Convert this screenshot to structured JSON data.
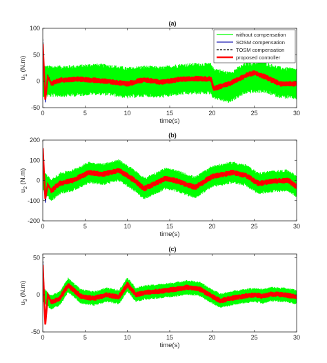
{
  "chart_data": [
    {
      "type": "line",
      "title": "(a)",
      "xlabel": "time(s)",
      "ylabel": "u1 (N.m)",
      "ylabel_main": "u",
      "ylabel_sub": "1",
      "ylabel_rest": " (N.m)",
      "xlim": [
        0,
        30
      ],
      "ylim": [
        -50,
        100
      ],
      "xticks": [
        "0",
        "5",
        "10",
        "15",
        "20",
        "25",
        "30"
      ],
      "yticks": [
        "-50",
        "0",
        "50",
        "100"
      ],
      "xtick_values": [
        0,
        5,
        10,
        15,
        20,
        25,
        30
      ],
      "ytick_values": [
        -50,
        0,
        50,
        100
      ],
      "grid": false,
      "legend_position": "top-right",
      "series": [
        {
          "name": "without compensation",
          "color": "#00ff00",
          "style": "solid",
          "x": [
            0,
            2,
            4,
            6,
            8,
            10,
            12,
            14,
            16,
            18,
            19.9,
            20.1,
            22,
            24,
            26,
            28,
            30
          ],
          "y": [
            0,
            0,
            1,
            4,
            2,
            -3,
            0,
            -2,
            3,
            5,
            5,
            -3,
            -12,
            6,
            8,
            -2,
            -5
          ],
          "band_halfwidth": 30
        },
        {
          "name": "SOSM compensation",
          "color": "#1f1fb4",
          "style": "solid",
          "x": [
            0,
            0.3,
            0.6,
            1,
            2,
            4,
            6,
            8,
            10,
            12,
            14,
            16,
            18,
            19.9,
            20.2,
            22,
            24,
            25,
            26,
            28,
            30
          ],
          "y": [
            75,
            -40,
            10,
            -5,
            2,
            5,
            2,
            -1,
            -6,
            4,
            -2,
            3,
            5,
            4,
            -15,
            -5,
            12,
            17,
            10,
            -5,
            -5
          ]
        },
        {
          "name": "TOSM compensation",
          "color": "#000000",
          "style": "dashed",
          "x": [
            0,
            0.3,
            0.6,
            1,
            2,
            4,
            6,
            8,
            10,
            12,
            14,
            16,
            18,
            19.9,
            20.2,
            22,
            24,
            25,
            26,
            28,
            30
          ],
          "y": [
            80,
            -30,
            12,
            -4,
            2,
            4,
            2,
            -1,
            -5,
            3,
            -2,
            3,
            5,
            4,
            -14,
            -5,
            11,
            16,
            10,
            -5,
            -5
          ]
        },
        {
          "name": "proposed controller",
          "color": "#ff0000",
          "style": "solid",
          "x": [
            0,
            0.3,
            0.6,
            1,
            2,
            4,
            6,
            8,
            10,
            12,
            14,
            16,
            18,
            19.9,
            20.2,
            22,
            24,
            25,
            26,
            28,
            30
          ],
          "y": [
            70,
            -35,
            8,
            -4,
            2,
            4,
            2,
            -1,
            -5,
            3,
            -2,
            3,
            5,
            4,
            -14,
            -5,
            11,
            16,
            10,
            -5,
            -5
          ]
        }
      ]
    },
    {
      "type": "line",
      "title": "(b)",
      "xlabel": "time(s)",
      "ylabel": "u2 (N.m)",
      "ylabel_main": "u",
      "ylabel_sub": "2",
      "ylabel_rest": " (N.m)",
      "xlim": [
        0,
        30
      ],
      "ylim": [
        -200,
        200
      ],
      "xticks": [
        "0",
        "5",
        "10",
        "15",
        "20",
        "25",
        "30"
      ],
      "yticks": [
        "-200",
        "-100",
        "0",
        "100",
        "200"
      ],
      "xtick_values": [
        0,
        5,
        10,
        15,
        20,
        25,
        30
      ],
      "ytick_values": [
        -200,
        -100,
        0,
        100,
        200
      ],
      "grid": false,
      "series": [
        {
          "name": "without compensation",
          "color": "#00ff00",
          "style": "solid",
          "x": [
            0,
            1,
            2,
            3.5,
            5.5,
            7,
            9,
            10.5,
            12,
            14.5,
            16,
            18,
            20,
            22.5,
            24,
            25.5,
            27,
            29,
            30
          ],
          "y": [
            0,
            -50,
            -15,
            0,
            40,
            30,
            50,
            10,
            -40,
            10,
            -5,
            -35,
            20,
            40,
            25,
            -15,
            -5,
            0,
            -30
          ],
          "band_halfwidth": 55
        },
        {
          "name": "SOSM compensation",
          "color": "#1f1fb4",
          "style": "solid",
          "x": [
            0,
            0.3,
            0.6,
            1,
            2,
            3.5,
            5.5,
            7,
            9,
            10.5,
            12,
            14.5,
            16,
            18,
            20,
            22.5,
            24,
            25.5,
            27,
            29,
            30
          ],
          "y": [
            130,
            -110,
            -20,
            -50,
            -15,
            0,
            40,
            30,
            50,
            10,
            -40,
            10,
            -5,
            -35,
            20,
            40,
            25,
            -15,
            -5,
            0,
            -30
          ]
        },
        {
          "name": "TOSM compensation",
          "color": "#000000",
          "style": "dashed",
          "x": [
            0,
            0.3,
            0.6,
            1,
            2,
            3.5,
            5.5,
            7,
            9,
            10.5,
            12,
            14.5,
            16,
            18,
            20,
            22.5,
            24,
            25.5,
            27,
            29,
            30
          ],
          "y": [
            150,
            -100,
            -20,
            -50,
            -15,
            0,
            40,
            30,
            50,
            10,
            -40,
            10,
            -5,
            -35,
            20,
            40,
            25,
            -15,
            -5,
            0,
            -30
          ]
        },
        {
          "name": "proposed controller",
          "color": "#ff0000",
          "style": "solid",
          "x": [
            0,
            0.3,
            0.6,
            1,
            2,
            3.5,
            5.5,
            7,
            9,
            10.5,
            12,
            14.5,
            16,
            18,
            20,
            22.5,
            24,
            25.5,
            27,
            29,
            30
          ],
          "y": [
            160,
            -90,
            -20,
            -50,
            -15,
            0,
            40,
            30,
            50,
            10,
            -40,
            10,
            -5,
            -35,
            20,
            40,
            25,
            -15,
            -5,
            0,
            -30
          ]
        }
      ]
    },
    {
      "type": "line",
      "title": "(c)",
      "xlabel": "time(s)",
      "ylabel": "u3 (N.m)",
      "ylabel_main": "u",
      "ylabel_sub": "3",
      "ylabel_rest": " (N.m)",
      "xlim": [
        0,
        30
      ],
      "ylim": [
        -50,
        55
      ],
      "xticks": [
        "0",
        "5",
        "10",
        "15",
        "20",
        "25",
        "30"
      ],
      "yticks": [
        "-50",
        "0",
        "50"
      ],
      "xtick_values": [
        0,
        5,
        10,
        15,
        20,
        25,
        30
      ],
      "ytick_values": [
        -50,
        0,
        50
      ],
      "grid": false,
      "series": [
        {
          "name": "without compensation",
          "color": "#00ff00",
          "style": "solid",
          "x": [
            0,
            1,
            2,
            3,
            4.5,
            6,
            7.5,
            9,
            10,
            11,
            12,
            14,
            16,
            17,
            18.5,
            20,
            21,
            23,
            25,
            26,
            27,
            28.5,
            30
          ],
          "y": [
            0,
            -10,
            -5,
            13,
            -2,
            -5,
            0,
            -3,
            14,
            0,
            3,
            5,
            8,
            10,
            8,
            -2,
            -8,
            -3,
            0,
            -2,
            1,
            0,
            -3
          ],
          "band_halfwidth": 10
        },
        {
          "name": "SOSM compensation",
          "color": "#1f1fb4",
          "style": "solid",
          "x": [
            0,
            0.3,
            0.6,
            1,
            2,
            3,
            4.5,
            6,
            7.5,
            9,
            10,
            11,
            12,
            14,
            16,
            17,
            18.5,
            20,
            21,
            23,
            25,
            26,
            27,
            28.5,
            30
          ],
          "y": [
            45,
            -35,
            0,
            -10,
            -5,
            13,
            -2,
            -5,
            0,
            -3,
            14,
            0,
            3,
            5,
            8,
            10,
            8,
            -2,
            -8,
            -3,
            0,
            -2,
            1,
            0,
            -3
          ]
        },
        {
          "name": "TOSM compensation",
          "color": "#000000",
          "style": "dashed",
          "x": [
            0,
            0.3,
            0.6,
            1,
            2,
            3,
            4.5,
            6,
            7.5,
            9,
            10,
            11,
            12,
            14,
            16,
            17,
            18.5,
            20,
            21,
            23,
            25,
            26,
            27,
            28.5,
            30
          ],
          "y": [
            50,
            -30,
            0,
            -10,
            -5,
            13,
            -2,
            -5,
            0,
            -3,
            14,
            0,
            3,
            5,
            8,
            10,
            8,
            -2,
            -8,
            -3,
            0,
            -2,
            1,
            0,
            -3
          ]
        },
        {
          "name": "proposed controller",
          "color": "#ff0000",
          "style": "solid",
          "x": [
            0,
            0.3,
            0.6,
            1,
            2,
            3,
            4.5,
            6,
            7.5,
            9,
            10,
            11,
            12,
            14,
            16,
            17,
            18.5,
            20,
            21,
            23,
            25,
            26,
            27,
            28.5,
            30
          ],
          "y": [
            40,
            -40,
            0,
            -10,
            -5,
            13,
            -2,
            -5,
            0,
            -3,
            14,
            0,
            3,
            5,
            8,
            10,
            8,
            -2,
            -8,
            -3,
            0,
            -2,
            1,
            0,
            -3
          ]
        }
      ]
    }
  ]
}
